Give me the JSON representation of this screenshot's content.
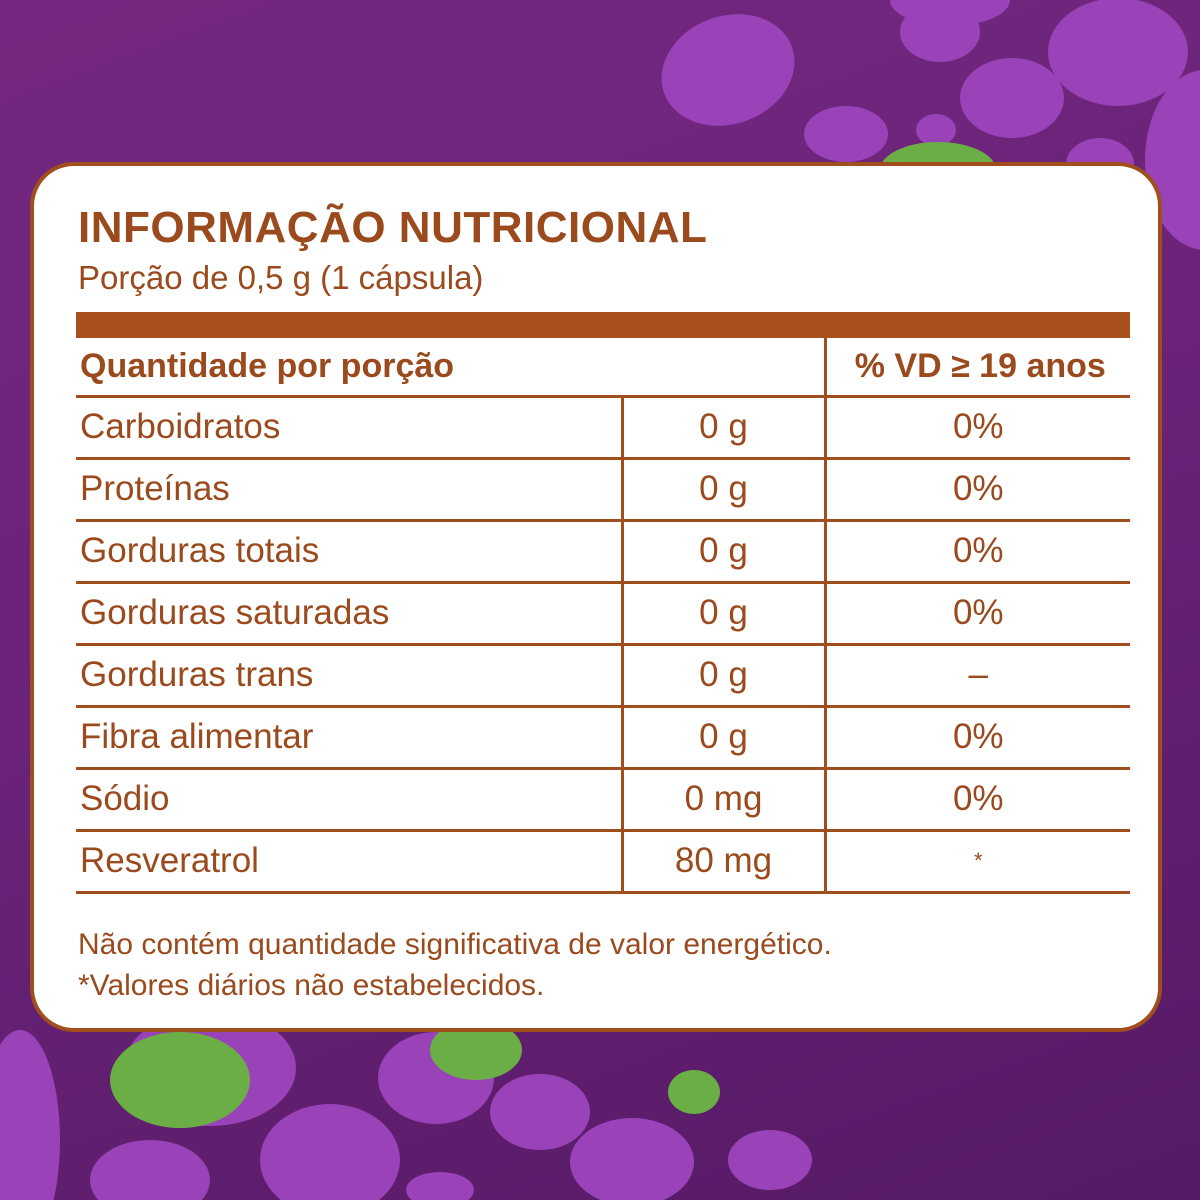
{
  "colors": {
    "background": "#6a2379",
    "bubble_light": "#9a42b8",
    "bubble_green": "#6aae45",
    "panel_border": "#a04e1e",
    "text": "#9a4a1d"
  },
  "label": {
    "title": "INFORMAÇÃO NUTRICIONAL",
    "serving": "Porção de 0,5 g (1 cápsula)",
    "header_quantity": "Quantidade por porção",
    "header_vd": "% VD ≥ 19 anos",
    "rows": [
      {
        "name": "Carboidratos",
        "amount": "0 g",
        "vd": "0%"
      },
      {
        "name": "Proteínas",
        "amount": "0 g",
        "vd": "0%"
      },
      {
        "name": "Gorduras totais",
        "amount": "0 g",
        "vd": "0%"
      },
      {
        "name": "Gorduras saturadas",
        "amount": "0 g",
        "vd": "0%"
      },
      {
        "name": "Gorduras trans",
        "amount": "0 g",
        "vd": "–"
      },
      {
        "name": "Fibra alimentar",
        "amount": "0 g",
        "vd": "0%"
      },
      {
        "name": "Sódio",
        "amount": "0 mg",
        "vd": "0%"
      },
      {
        "name": "Resveratrol",
        "amount": "80 mg",
        "vd": "*"
      }
    ],
    "footnote_1": "Não contém quantidade significativa de valor energético.",
    "footnote_2": "*Valores diários não estabelecidos."
  }
}
